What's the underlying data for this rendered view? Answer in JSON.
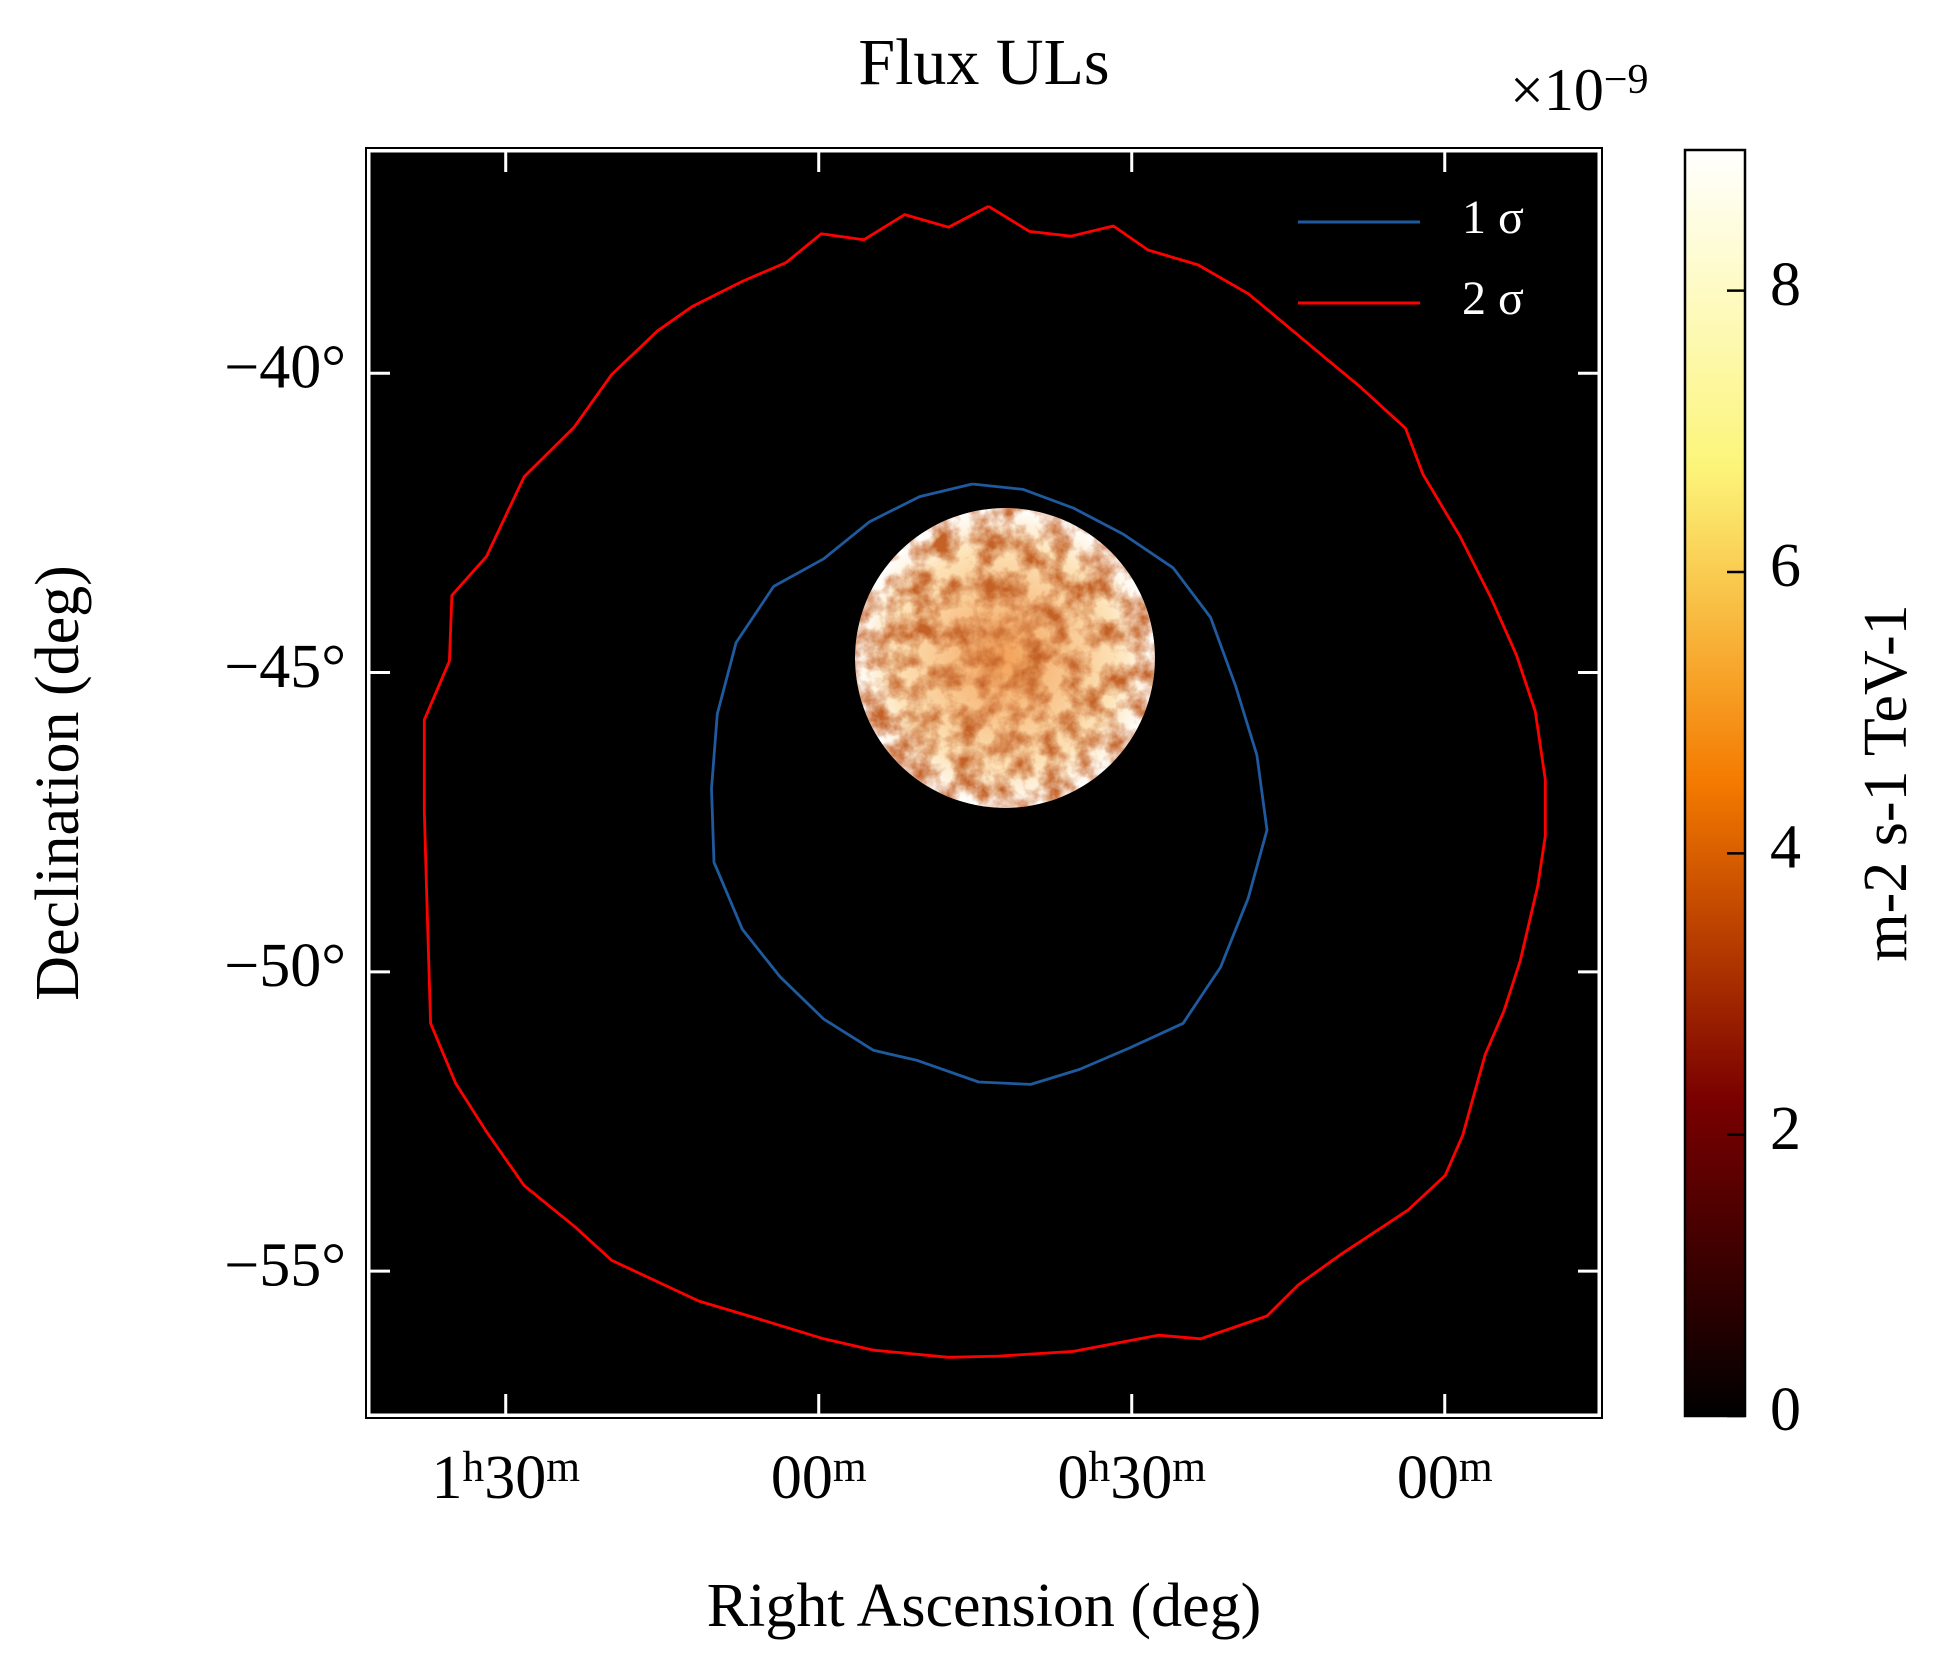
{
  "chart_data": {
    "type": "contour",
    "title": "Flux ULs",
    "x_label": "Right Ascension (deg)",
    "y_label": "Declination (deg)",
    "xlim": [
      25.8,
      -3.72
    ],
    "ylim": [
      -57.42,
      -36.27
    ],
    "xticks": [
      {
        "value": 22.5,
        "label": "1h30m"
      },
      {
        "value": 15,
        "label": "00m"
      },
      {
        "value": 7.5,
        "label": "0h30m"
      },
      {
        "value": 0,
        "label": "00m"
      }
    ],
    "yticks": [
      {
        "value": -40,
        "label": "−40°"
      },
      {
        "value": -45,
        "label": "−45°"
      },
      {
        "value": -50,
        "label": "−50°"
      },
      {
        "value": -55,
        "label": "−55°"
      }
    ],
    "legend_position": "upper right",
    "series": [
      {
        "name": "1 σ",
        "color": "#1f5a9e",
        "x": [
          11.32,
          10.1,
          8.9,
          7.7,
          6.51,
          5.61,
          5.01,
          4.5,
          4.26,
          4.71,
          5.37,
          6.27,
          7.55,
          8.75,
          9.92,
          11.17,
          12.64,
          13.69,
          14.88,
          15.93,
          16.83,
          17.51,
          17.57,
          17.43,
          16.98,
          16.08,
          14.88,
          13.78,
          12.58,
          11.32
        ],
        "y": [
          -41.85,
          -41.94,
          -42.25,
          -42.69,
          -43.25,
          -44.08,
          -45.23,
          -46.38,
          -47.63,
          -48.77,
          -49.92,
          -50.86,
          -51.27,
          -51.63,
          -51.88,
          -51.84,
          -51.48,
          -51.31,
          -50.79,
          -50.08,
          -49.29,
          -48.17,
          -46.94,
          -45.69,
          -44.5,
          -43.56,
          -43.1,
          -42.48,
          -42.06,
          -41.85
        ]
      },
      {
        "name": "2 σ",
        "color": "#ff0000",
        "x": [
          10.93,
          9.95,
          8.96,
          7.94,
          7.11,
          5.91,
          4.71,
          3.81,
          2.92,
          2.02,
          0.94,
          0.52,
          -0.37,
          -1.12,
          -1.72,
          -2.17,
          -2.41,
          -2.41,
          -2.23,
          -1.81,
          -1.42,
          -0.97,
          -0.43,
          -0.01,
          0.88,
          2.47,
          3.51,
          4.26,
          5.85,
          6.86,
          8.9,
          10.69,
          11.89,
          13.68,
          14.88,
          16.67,
          17.87,
          19.96,
          20.86,
          22.06,
          22.96,
          23.7,
          24.3,
          24.39,
          24.45,
          24.45,
          23.85,
          23.79,
          22.96,
          22.06,
          20.86,
          19.96,
          18.86,
          18.02,
          16.82,
          15.78,
          14.94,
          13.92,
          12.94,
          11.89,
          10.93
        ],
        "y": [
          -37.21,
          -37.63,
          -37.71,
          -37.54,
          -37.94,
          -38.19,
          -38.67,
          -39.19,
          -39.71,
          -40.23,
          -40.92,
          -41.69,
          -42.73,
          -43.77,
          -44.71,
          -45.65,
          -46.79,
          -47.73,
          -48.56,
          -49.81,
          -50.65,
          -51.38,
          -52.73,
          -53.4,
          -53.98,
          -54.71,
          -55.23,
          -55.75,
          -56.13,
          -56.07,
          -56.34,
          -56.42,
          -56.44,
          -56.32,
          -56.13,
          -55.75,
          -55.5,
          -54.82,
          -54.25,
          -53.57,
          -52.67,
          -51.86,
          -50.86,
          -48.77,
          -47.31,
          -45.79,
          -44.81,
          -43.71,
          -43.06,
          -41.73,
          -40.9,
          -40.02,
          -39.29,
          -38.88,
          -38.46,
          -38.15,
          -37.67,
          -37.77,
          -37.35,
          -37.56,
          -37.21
        ]
      }
    ],
    "colorbar": {
      "label": "m-2 s-1 TeV-1",
      "clim": [
        0,
        9
      ],
      "ticks": [
        0,
        2,
        4,
        6,
        8
      ],
      "offset_text": "×10−9"
    }
  }
}
